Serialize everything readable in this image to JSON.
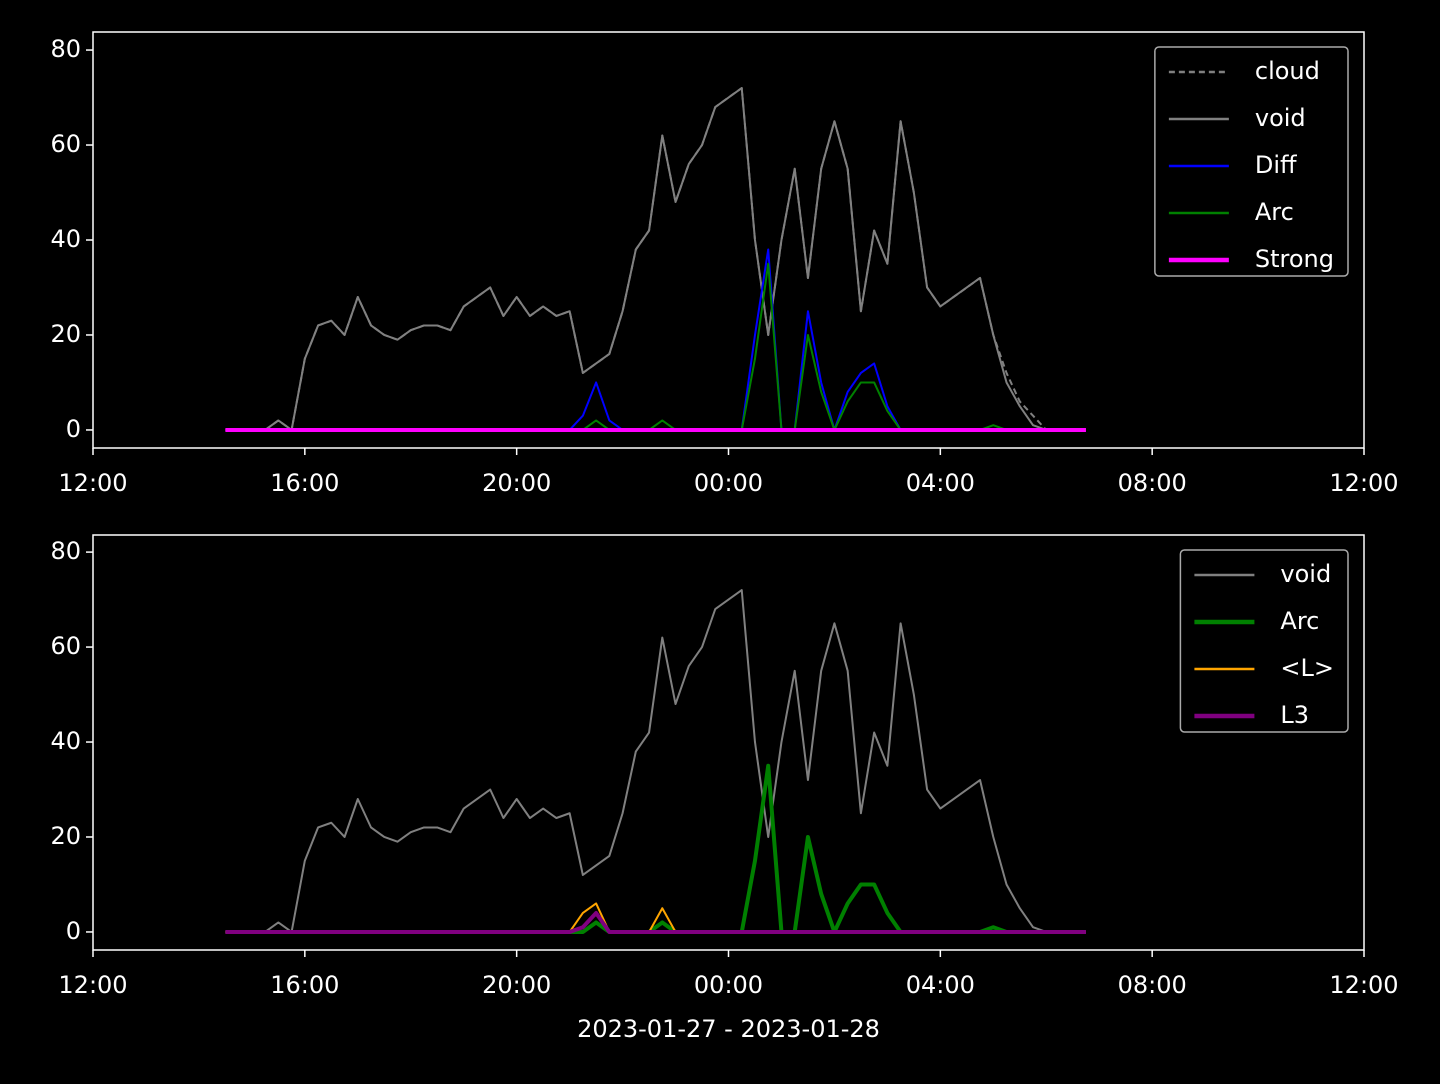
{
  "chart_data": [
    {
      "type": "line",
      "x": [
        "2023-01-27 14:30",
        "2023-01-27 14:45",
        "2023-01-27 15:00",
        "2023-01-27 15:15",
        "2023-01-27 15:30",
        "2023-01-27 15:45",
        "2023-01-27 16:00",
        "2023-01-27 16:15",
        "2023-01-27 16:30",
        "2023-01-27 16:45",
        "2023-01-27 17:00",
        "2023-01-27 17:15",
        "2023-01-27 17:30",
        "2023-01-27 17:45",
        "2023-01-27 18:00",
        "2023-01-27 18:15",
        "2023-01-27 18:30",
        "2023-01-27 18:45",
        "2023-01-27 19:00",
        "2023-01-27 19:15",
        "2023-01-27 19:30",
        "2023-01-27 19:45",
        "2023-01-27 20:00",
        "2023-01-27 20:15",
        "2023-01-27 20:30",
        "2023-01-27 20:45",
        "2023-01-27 21:00",
        "2023-01-27 21:15",
        "2023-01-27 21:30",
        "2023-01-27 21:45",
        "2023-01-27 22:00",
        "2023-01-27 22:15",
        "2023-01-27 22:30",
        "2023-01-27 22:45",
        "2023-01-27 23:00",
        "2023-01-27 23:15",
        "2023-01-27 23:30",
        "2023-01-27 23:45",
        "2023-01-28 00:00",
        "2023-01-28 00:15",
        "2023-01-28 00:30",
        "2023-01-28 00:45",
        "2023-01-28 01:00",
        "2023-01-28 01:15",
        "2023-01-28 01:30",
        "2023-01-28 01:45",
        "2023-01-28 02:00",
        "2023-01-28 02:15",
        "2023-01-28 02:30",
        "2023-01-28 02:45",
        "2023-01-28 03:00",
        "2023-01-28 03:15",
        "2023-01-28 03:30",
        "2023-01-28 03:45",
        "2023-01-28 04:00",
        "2023-01-28 04:15",
        "2023-01-28 04:30",
        "2023-01-28 04:45",
        "2023-01-28 05:00",
        "2023-01-28 05:15",
        "2023-01-28 05:30",
        "2023-01-28 05:45",
        "2023-01-28 06:00",
        "2023-01-28 06:15",
        "2023-01-28 06:30",
        "2023-01-28 06:45"
      ],
      "series": [
        {
          "name": "cloud",
          "color": "#808080",
          "linestyle": "dashed",
          "values": [
            0,
            0,
            0,
            0,
            2,
            0,
            15,
            22,
            23,
            20,
            28,
            22,
            20,
            19,
            21,
            22,
            22,
            21,
            26,
            28,
            30,
            24,
            28,
            24,
            26,
            24,
            25,
            12,
            14,
            16,
            25,
            38,
            42,
            62,
            48,
            56,
            60,
            68,
            70,
            72,
            40,
            20,
            40,
            55,
            32,
            55,
            65,
            55,
            25,
            42,
            35,
            65,
            50,
            30,
            26,
            28,
            30,
            32,
            20,
            12,
            6,
            3,
            0,
            0,
            0,
            0
          ]
        },
        {
          "name": "void",
          "color": "#808080",
          "linestyle": "solid",
          "values": [
            0,
            0,
            0,
            0,
            2,
            0,
            15,
            22,
            23,
            20,
            28,
            22,
            20,
            19,
            21,
            22,
            22,
            21,
            26,
            28,
            30,
            24,
            28,
            24,
            26,
            24,
            25,
            12,
            14,
            16,
            25,
            38,
            42,
            62,
            48,
            56,
            60,
            68,
            70,
            72,
            40,
            20,
            40,
            55,
            32,
            55,
            65,
            55,
            25,
            42,
            35,
            65,
            50,
            30,
            26,
            28,
            30,
            32,
            20,
            10,
            5,
            1,
            0,
            0,
            0,
            0
          ]
        },
        {
          "name": "Diff",
          "color": "#0000ff",
          "linestyle": "solid",
          "values": [
            0,
            0,
            0,
            0,
            0,
            0,
            0,
            0,
            0,
            0,
            0,
            0,
            0,
            0,
            0,
            0,
            0,
            0,
            0,
            0,
            0,
            0,
            0,
            0,
            0,
            0,
            0,
            3,
            10,
            2,
            0,
            0,
            0,
            0,
            0,
            0,
            0,
            0,
            0,
            0,
            20,
            38,
            0,
            0,
            25,
            10,
            0,
            8,
            12,
            14,
            5,
            0,
            0,
            0,
            0,
            0,
            0,
            0,
            0,
            0,
            0,
            0,
            0,
            0,
            0,
            0
          ]
        },
        {
          "name": "Arc",
          "color": "#008000",
          "linestyle": "solid",
          "values": [
            0,
            0,
            0,
            0,
            0,
            0,
            0,
            0,
            0,
            0,
            0,
            0,
            0,
            0,
            0,
            0,
            0,
            0,
            0,
            0,
            0,
            0,
            0,
            0,
            0,
            0,
            0,
            0,
            2,
            0,
            0,
            0,
            0,
            2,
            0,
            0,
            0,
            0,
            0,
            0,
            15,
            35,
            0,
            0,
            20,
            8,
            0,
            6,
            10,
            10,
            4,
            0,
            0,
            0,
            0,
            0,
            0,
            0,
            1,
            0,
            0,
            0,
            0,
            0,
            0,
            0
          ]
        },
        {
          "name": "Strong",
          "color": "#ff00ff",
          "linestyle": "bold",
          "values": [
            0,
            0,
            0,
            0,
            0,
            0,
            0,
            0,
            0,
            0,
            0,
            0,
            0,
            0,
            0,
            0,
            0,
            0,
            0,
            0,
            0,
            0,
            0,
            0,
            0,
            0,
            0,
            0,
            0,
            0,
            0,
            0,
            0,
            0,
            0,
            0,
            0,
            0,
            0,
            0,
            0,
            0,
            0,
            0,
            0,
            0,
            0,
            0,
            0,
            0,
            0,
            0,
            0,
            0,
            0,
            0,
            0,
            0,
            0,
            0,
            0,
            0,
            0,
            0,
            0,
            0
          ]
        }
      ],
      "xlim": [
        "2023-01-27 12:00",
        "2023-01-28 12:00"
      ],
      "xticks": [
        {
          "value": "2023-01-27 12:00",
          "label": "12:00"
        },
        {
          "value": "2023-01-27 16:00",
          "label": "16:00"
        },
        {
          "value": "2023-01-27 20:00",
          "label": "20:00"
        },
        {
          "value": "2023-01-28 00:00",
          "label": "00:00"
        },
        {
          "value": "2023-01-28 04:00",
          "label": "04:00"
        },
        {
          "value": "2023-01-28 08:00",
          "label": "08:00"
        },
        {
          "value": "2023-01-28 12:00",
          "label": "12:00"
        }
      ],
      "ylim": [
        -3.8,
        83.8
      ],
      "yticks": [
        0,
        20,
        40,
        60,
        80
      ],
      "legend": "upper right"
    },
    {
      "type": "line",
      "x": [
        "2023-01-27 14:30",
        "2023-01-27 14:45",
        "2023-01-27 15:00",
        "2023-01-27 15:15",
        "2023-01-27 15:30",
        "2023-01-27 15:45",
        "2023-01-27 16:00",
        "2023-01-27 16:15",
        "2023-01-27 16:30",
        "2023-01-27 16:45",
        "2023-01-27 17:00",
        "2023-01-27 17:15",
        "2023-01-27 17:30",
        "2023-01-27 17:45",
        "2023-01-27 18:00",
        "2023-01-27 18:15",
        "2023-01-27 18:30",
        "2023-01-27 18:45",
        "2023-01-27 19:00",
        "2023-01-27 19:15",
        "2023-01-27 19:30",
        "2023-01-27 19:45",
        "2023-01-27 20:00",
        "2023-01-27 20:15",
        "2023-01-27 20:30",
        "2023-01-27 20:45",
        "2023-01-27 21:00",
        "2023-01-27 21:15",
        "2023-01-27 21:30",
        "2023-01-27 21:45",
        "2023-01-27 22:00",
        "2023-01-27 22:15",
        "2023-01-27 22:30",
        "2023-01-27 22:45",
        "2023-01-27 23:00",
        "2023-01-27 23:15",
        "2023-01-27 23:30",
        "2023-01-27 23:45",
        "2023-01-28 00:00",
        "2023-01-28 00:15",
        "2023-01-28 00:30",
        "2023-01-28 00:45",
        "2023-01-28 01:00",
        "2023-01-28 01:15",
        "2023-01-28 01:30",
        "2023-01-28 01:45",
        "2023-01-28 02:00",
        "2023-01-28 02:15",
        "2023-01-28 02:30",
        "2023-01-28 02:45",
        "2023-01-28 03:00",
        "2023-01-28 03:15",
        "2023-01-28 03:30",
        "2023-01-28 03:45",
        "2023-01-28 04:00",
        "2023-01-28 04:15",
        "2023-01-28 04:30",
        "2023-01-28 04:45",
        "2023-01-28 05:00",
        "2023-01-28 05:15",
        "2023-01-28 05:30",
        "2023-01-28 05:45",
        "2023-01-28 06:00",
        "2023-01-28 06:15",
        "2023-01-28 06:30",
        "2023-01-28 06:45"
      ],
      "series": [
        {
          "name": "void",
          "color": "#808080",
          "linestyle": "solid",
          "values": [
            0,
            0,
            0,
            0,
            2,
            0,
            15,
            22,
            23,
            20,
            28,
            22,
            20,
            19,
            21,
            22,
            22,
            21,
            26,
            28,
            30,
            24,
            28,
            24,
            26,
            24,
            25,
            12,
            14,
            16,
            25,
            38,
            42,
            62,
            48,
            56,
            60,
            68,
            70,
            72,
            40,
            20,
            40,
            55,
            32,
            55,
            65,
            55,
            25,
            42,
            35,
            65,
            50,
            30,
            26,
            28,
            30,
            32,
            20,
            10,
            5,
            1,
            0,
            0,
            0,
            0
          ]
        },
        {
          "name": "Arc",
          "color": "#008000",
          "linestyle": "bold",
          "values": [
            0,
            0,
            0,
            0,
            0,
            0,
            0,
            0,
            0,
            0,
            0,
            0,
            0,
            0,
            0,
            0,
            0,
            0,
            0,
            0,
            0,
            0,
            0,
            0,
            0,
            0,
            0,
            0,
            2,
            0,
            0,
            0,
            0,
            2,
            0,
            0,
            0,
            0,
            0,
            0,
            15,
            35,
            0,
            0,
            20,
            8,
            0,
            6,
            10,
            10,
            4,
            0,
            0,
            0,
            0,
            0,
            0,
            0,
            1,
            0,
            0,
            0,
            0,
            0,
            0,
            0
          ]
        },
        {
          "name": "<L>",
          "color": "#ffa500",
          "linestyle": "solid",
          "values": [
            0,
            0,
            0,
            0,
            0,
            0,
            0,
            0,
            0,
            0,
            0,
            0,
            0,
            0,
            0,
            0,
            0,
            0,
            0,
            0,
            0,
            0,
            0,
            0,
            0,
            0,
            0,
            4,
            6,
            0,
            0,
            0,
            0,
            5,
            0,
            0,
            0,
            0,
            0,
            0,
            0,
            0,
            0,
            0,
            0,
            0,
            0,
            0,
            0,
            0,
            0,
            0,
            0,
            0,
            0,
            0,
            0,
            0,
            0,
            0,
            0,
            0,
            0,
            0,
            0,
            0
          ]
        },
        {
          "name": "L3",
          "color": "#800080",
          "linestyle": "bold",
          "values": [
            0,
            0,
            0,
            0,
            0,
            0,
            0,
            0,
            0,
            0,
            0,
            0,
            0,
            0,
            0,
            0,
            0,
            0,
            0,
            0,
            0,
            0,
            0,
            0,
            0,
            0,
            0,
            1,
            4,
            0,
            0,
            0,
            0,
            0,
            0,
            0,
            0,
            0,
            0,
            0,
            0,
            0,
            0,
            0,
            0,
            0,
            0,
            0,
            0,
            0,
            0,
            0,
            0,
            0,
            0,
            0,
            0,
            0,
            0,
            0,
            0,
            0,
            0,
            0,
            0,
            0
          ]
        }
      ],
      "xlim": [
        "2023-01-27 12:00",
        "2023-01-28 12:00"
      ],
      "xticks": [
        {
          "value": "2023-01-27 12:00",
          "label": "12:00"
        },
        {
          "value": "2023-01-27 16:00",
          "label": "16:00"
        },
        {
          "value": "2023-01-27 20:00",
          "label": "20:00"
        },
        {
          "value": "2023-01-28 00:00",
          "label": "00:00"
        },
        {
          "value": "2023-01-28 04:00",
          "label": "04:00"
        },
        {
          "value": "2023-01-28 08:00",
          "label": "08:00"
        },
        {
          "value": "2023-01-28 12:00",
          "label": "12:00"
        }
      ],
      "ylim": [
        -3.8,
        83.6
      ],
      "yticks": [
        0,
        20,
        40,
        60,
        80
      ],
      "legend": "upper right",
      "xlabel": "2023-01-27 - 2023-01-28"
    }
  ]
}
